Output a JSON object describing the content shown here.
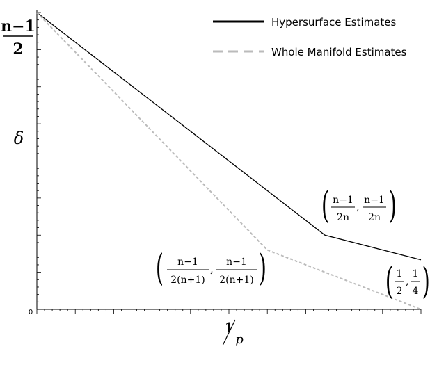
{
  "chart_data": {
    "type": "line",
    "title": "",
    "xlabel": {
      "numerator": "1",
      "denominator": "p"
    },
    "ylabel": "δ",
    "x_range": [
      0,
      0.5
    ],
    "y_range": [
      0,
      1
    ],
    "y_top_label": {
      "numerator": "n−1",
      "denominator": "2"
    },
    "y_zero_label": "0",
    "grid": false,
    "legend_position": "top-right",
    "series": [
      {
        "name": "Hypersurface Estimates",
        "style": "solid",
        "color": "#000000",
        "points": [
          [
            0,
            1
          ],
          [
            0.375,
            0.25
          ],
          [
            0.5,
            0.167
          ]
        ]
      },
      {
        "name": "Whole Manifold Estimates",
        "style": "dashed",
        "color": "#bbbbbb",
        "points": [
          [
            0,
            1
          ],
          [
            0.3,
            0.2
          ],
          [
            0.5,
            0
          ]
        ]
      }
    ],
    "annotations": [
      {
        "id": "a1",
        "x_num": "n−1",
        "x_den": "2n",
        "y_num": "n−1",
        "y_den": "2n"
      },
      {
        "id": "a2",
        "x_num": "n−1",
        "x_den": "2(n+1)",
        "y_num": "n−1",
        "y_den": "2(n+1)"
      },
      {
        "id": "a3",
        "x_num": "1",
        "x_den": "2",
        "y_num": "1",
        "y_den": "4"
      }
    ]
  }
}
